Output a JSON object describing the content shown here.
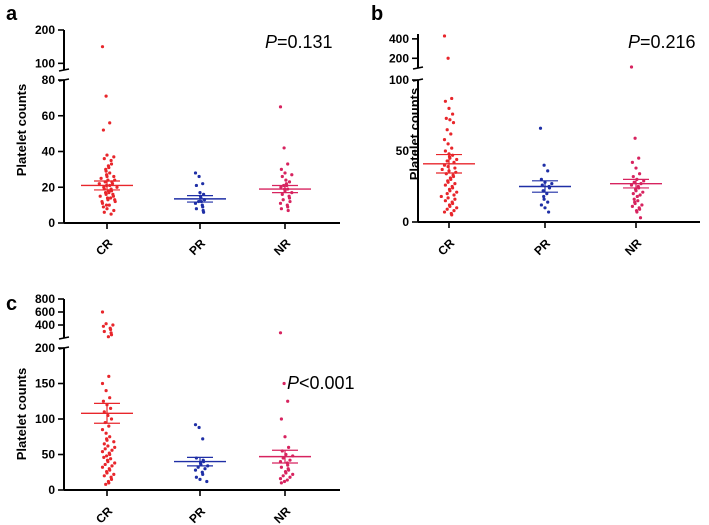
{
  "chart_data": [
    {
      "panel": "a",
      "type": "scatter",
      "ylabel": "Platelet counts",
      "annotation": {
        "italic": "P",
        "rest": "=0.131"
      },
      "categories": [
        "CR",
        "PR",
        "NR"
      ],
      "colors": [
        "#e8262b",
        "#1f2fa6",
        "#d7235f"
      ],
      "segments": [
        {
          "range": [
            0,
            80
          ],
          "ticks": [
            "0",
            "20",
            "40",
            "60",
            "80"
          ]
        },
        {
          "range": [
            80,
            200
          ],
          "ticks": [
            "100",
            "200"
          ]
        }
      ],
      "ticksNum": [
        [
          0,
          20,
          40,
          60,
          80
        ],
        [
          100,
          200
        ]
      ],
      "points": [
        [
          150,
          71,
          56,
          52,
          38,
          37,
          36,
          35,
          33,
          32,
          31,
          30,
          29,
          28,
          27,
          26,
          26,
          25,
          24,
          24,
          23,
          23,
          22,
          22,
          21,
          21,
          20,
          20,
          19,
          19,
          18,
          18,
          17,
          17,
          16,
          16,
          15,
          15,
          14,
          14,
          13,
          13,
          12,
          12,
          11,
          10,
          10,
          9,
          8,
          7,
          6,
          5
        ],
        [
          28,
          26,
          22,
          21,
          17,
          16,
          15,
          14,
          13,
          12,
          12,
          11,
          10,
          9,
          8,
          7,
          6
        ],
        [
          65,
          42,
          33,
          30,
          28,
          27,
          26,
          24,
          23,
          22,
          21,
          21,
          20,
          19,
          19,
          18,
          17,
          16,
          15,
          14,
          13,
          12,
          11,
          10,
          9,
          8,
          7
        ]
      ],
      "mean": [
        21,
        13.5,
        19
      ],
      "sem": [
        2.5,
        1.8,
        2.0
      ]
    },
    {
      "panel": "b",
      "type": "scatter",
      "ylabel": "Platelet counts",
      "annotation": {
        "italic": "P",
        "rest": "=0.216"
      },
      "categories": [
        "CR",
        "PR",
        "NR"
      ],
      "colors": [
        "#e8262b",
        "#1f2fa6",
        "#d7235f"
      ],
      "segments": [
        {
          "range": [
            0,
            100
          ],
          "ticks": [
            "0",
            "50",
            "100"
          ]
        },
        {
          "range": [
            100,
            450
          ],
          "ticks": [
            "200",
            "400"
          ]
        }
      ],
      "ticksNum": [
        [
          0,
          50,
          100
        ],
        [
          200,
          400
        ]
      ],
      "points": [
        [
          430,
          200,
          87,
          85,
          80,
          76,
          73,
          72,
          70,
          65,
          62,
          58,
          55,
          52,
          50,
          48,
          47,
          46,
          45,
          44,
          43,
          42,
          40,
          39,
          38,
          37,
          36,
          35,
          34,
          33,
          32,
          31,
          30,
          29,
          28,
          27,
          26,
          25,
          24,
          23,
          22,
          21,
          20,
          19,
          18,
          17,
          16,
          15,
          14,
          13,
          12,
          11,
          10,
          9,
          8,
          7,
          6,
          5
        ],
        [
          66,
          40,
          36,
          30,
          28,
          27,
          26,
          25,
          24,
          22,
          20,
          18,
          16,
          14,
          12,
          10,
          7
        ],
        [
          110,
          59,
          45,
          42,
          38,
          34,
          32,
          30,
          29,
          28,
          27,
          26,
          25,
          24,
          23,
          22,
          21,
          20,
          19,
          18,
          16,
          15,
          14,
          13,
          12,
          11,
          10,
          9,
          8,
          7,
          3
        ]
      ],
      "mean": [
        41,
        25,
        27
      ],
      "sem": [
        6.5,
        4,
        3
      ]
    },
    {
      "panel": "c",
      "type": "scatter",
      "ylabel": "Platelet counts",
      "annotation": {
        "italic": "P",
        "rest": "<0.001"
      },
      "categories": [
        "CR",
        "PR",
        "NR"
      ],
      "colors": [
        "#e8262b",
        "#1f2fa6",
        "#d7235f"
      ],
      "segments": [
        {
          "range": [
            0,
            200
          ],
          "ticks": [
            "0",
            "50",
            "100",
            "150",
            "200"
          ]
        },
        {
          "range": [
            200,
            800
          ],
          "ticks": [
            "200",
            "400",
            "600",
            "800"
          ]
        }
      ],
      "ticksNum": [
        [
          0,
          50,
          100,
          150,
          200
        ],
        [
          200,
          400,
          600,
          800
        ]
      ],
      "points": [
        [
          600,
          420,
          400,
          380,
          350,
          330,
          300,
          280,
          250,
          220,
          160,
          150,
          140,
          130,
          125,
          120,
          115,
          110,
          105,
          100,
          95,
          90,
          85,
          80,
          75,
          72,
          70,
          68,
          65,
          62,
          60,
          58,
          56,
          54,
          52,
          50,
          48,
          46,
          44,
          42,
          40,
          38,
          36,
          34,
          32,
          30,
          28,
          26,
          24,
          22,
          20,
          18,
          15,
          12,
          10,
          8
        ],
        [
          92,
          88,
          72,
          45,
          42,
          40,
          38,
          36,
          34,
          32,
          30,
          28,
          25,
          22,
          18,
          15,
          12
        ],
        [
          280,
          150,
          125,
          100,
          75,
          60,
          55,
          50,
          48,
          45,
          42,
          40,
          38,
          35,
          32,
          30,
          28,
          26,
          24,
          22,
          20,
          18,
          16,
          14,
          12,
          10
        ]
      ],
      "mean": [
        108,
        40,
        47
      ],
      "sem": [
        14,
        6,
        9
      ]
    }
  ]
}
